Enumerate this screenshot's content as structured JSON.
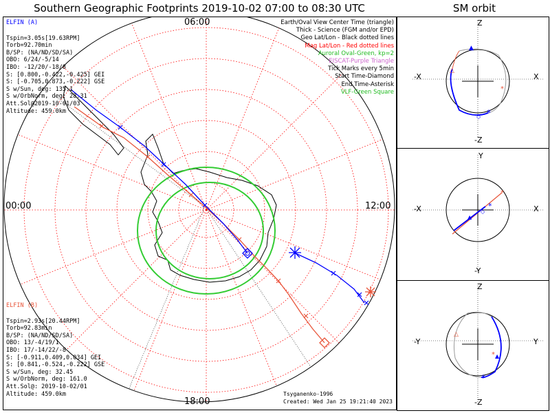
{
  "title": "Southern Geographic Footprints 2019-10-02 07:00 to 08:30 UTC",
  "orbit_title": "SM orbit",
  "time_labels": {
    "top": "06:00",
    "left": "00:00",
    "right": "12:00",
    "bottom": "18:00"
  },
  "elfin_a": {
    "name": "ELFIN (A)",
    "lines": [
      "Tspin=3.05s[19.63RPM]",
      "Torb=92.70min",
      "B/SP: (NA/ND/SD/SA)",
      "OBO: 6/24/-5/14",
      "IBO: -12/20/-18/8",
      "S: [0.800,-0.422,-0.425] GEI",
      "S: [-0.705,0.873,-0.222] GSE",
      "S w/Sun, deg: 135.1",
      "S w/OrbNorm, deg: 28.31",
      "Att.Sol@2019-10-01/03",
      "Altitude: 459.0km"
    ],
    "color": "#0000ff"
  },
  "elfin_b": {
    "name": "ELFIN (B)",
    "lines": [
      "Tspin=2.93s[20.44RPM]",
      "Torb=92.83min",
      "B/SP: (NA/ND/SD/SA)",
      "OBO: 13/-4/19/1",
      "IBO: 17/-14/22/-8",
      "S: [-0.911,0.409,0.034] GEI",
      "S: [0.841,-0.524,-0.222] GSE",
      "S w/Sun, deg: 32.45",
      "S w/OrbNorm, deg: 161.0",
      "Att.Sol@: 2019-10-02/01",
      "Altitude: 459.0km"
    ],
    "color": "#e8553a"
  },
  "legend": [
    {
      "text": "Earth/Oval View Center Time (triangle)",
      "color": "#000000"
    },
    {
      "text": "Thick - Science (FGM and/or EPD)",
      "color": "#000000"
    },
    {
      "text": "Geo Lat/Lon - Black dotted lines",
      "color": "#000000"
    },
    {
      "text": "Mag Lat/Lon - Red dotted lines",
      "color": "#ff0000"
    },
    {
      "text": "Auroral Oval-Green, kp=2",
      "color": "#22bb22"
    },
    {
      "text": "EISCAT-Purple Triangle",
      "color": "#cc66cc"
    },
    {
      "text": "Tick Marks every 5min",
      "color": "#000000"
    },
    {
      "text": "Start Time-Diamond",
      "color": "#000000"
    },
    {
      "text": "End Time-Asterisk",
      "color": "#000000"
    },
    {
      "text": "VLF-Green Square",
      "color": "#22bb22"
    }
  ],
  "credit": {
    "line1": "Tsyganenko-1996",
    "line2": "Created: Wed Jan 25 19:21:40 2023"
  },
  "orbit_panels": [
    {
      "top": "Z",
      "bottom": "-Z",
      "left": "-X",
      "right": "X"
    },
    {
      "top": "Y",
      "bottom": "-Y",
      "left": "-X",
      "right": "X"
    },
    {
      "top": "Z",
      "bottom": "-Z",
      "left": "-Y",
      "right": "Y"
    }
  ],
  "colors": {
    "oval": "#33cc33",
    "mag_grid": "#ff0000",
    "geo_grid": "#000000"
  }
}
